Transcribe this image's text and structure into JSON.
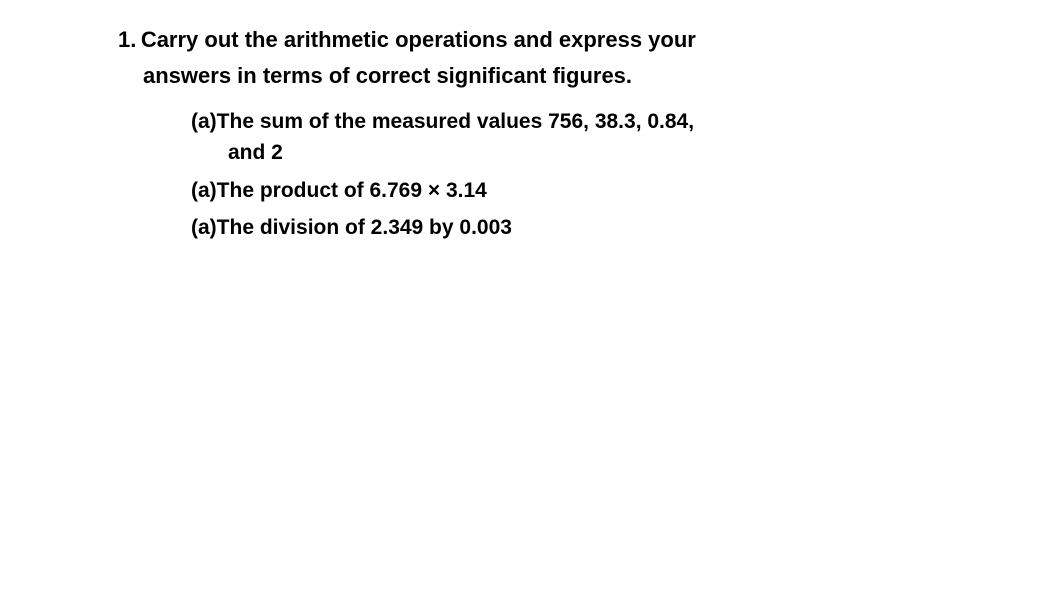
{
  "question": {
    "number": "1.",
    "text_line1": "Carry out the arithmetic operations and express your",
    "text_line2": "answers in terms of correct significant figures.",
    "subitems": [
      {
        "label": "(a)",
        "text_line1": "The sum of the measured values 756, 38.3, 0.84,",
        "text_line2": "and 2"
      },
      {
        "label": "(a)",
        "text_line1": "The product of 6.769 × 3.14"
      },
      {
        "label": "(a)",
        "text_line1": "The division of 2.349 by 0.003"
      }
    ]
  },
  "styling": {
    "background_color": "#ffffff",
    "text_color": "#000000",
    "question_fontsize": 22,
    "subitem_fontsize": 21,
    "font_weight": "bold",
    "font_family": "Arial, Helvetica, sans-serif"
  }
}
